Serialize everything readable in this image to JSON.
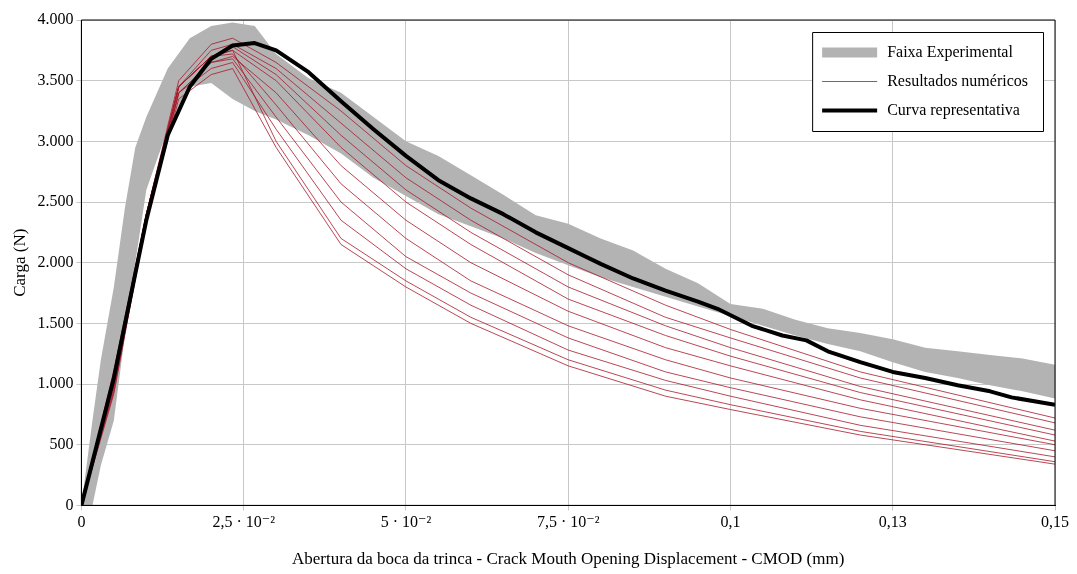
{
  "chart_data": {
    "type": "line",
    "xlabel": "Abertura da boca da trinca - Crack Mouth Opening Displacement - CMOD (mm)",
    "ylabel": "Carga (N)",
    "xlim": [
      0,
      0.15
    ],
    "xticks": [
      0,
      {
        "value": 0.025,
        "label": "2,5 · 10⁻²"
      },
      {
        "value": 0.05,
        "label": "5 · 10⁻²"
      },
      {
        "value": 0.075,
        "label": "7,5 · 10⁻²"
      },
      {
        "value": 0.1,
        "label": "0,1"
      },
      {
        "value": 0.125,
        "label": "0,13"
      },
      {
        "value": 0.15,
        "label": "0,15"
      }
    ],
    "ylim": [
      0,
      4000
    ],
    "yticks": [
      0,
      500,
      {
        "value": 1000,
        "label": "1.000"
      },
      {
        "value": 1500,
        "label": "1.500"
      },
      {
        "value": 2000,
        "label": "2.000"
      },
      {
        "value": 2500,
        "label": "2.500"
      },
      {
        "value": 3000,
        "label": "3.000"
      },
      {
        "value": 3500,
        "label": "3.500"
      },
      {
        "value": 4000,
        "label": "4.000"
      }
    ],
    "grid": true,
    "legend": "top right",
    "marker": "none",
    "line_style": "solid",
    "x": [
      0,
      0.005,
      0.01,
      0.015,
      0.02,
      0.0233,
      0.03,
      0.04,
      0.05,
      0.06,
      0.075,
      0.09,
      0.1,
      0.12,
      0.15
    ],
    "series": [
      {
        "name": "Faixa Experimental",
        "type": "area",
        "color": "#b3b3b3",
        "x": [
          0,
          0.0017,
          0.003,
          0.005,
          0.0067,
          0.0083,
          0.01,
          0.0133,
          0.0167,
          0.02,
          0.0233,
          0.0267,
          0.03,
          0.035,
          0.04,
          0.045,
          0.05,
          0.055,
          0.06,
          0.065,
          0.07,
          0.075,
          0.08,
          0.085,
          0.09,
          0.095,
          0.1,
          0.105,
          0.11,
          0.115,
          0.12,
          0.125,
          0.13,
          0.135,
          0.14,
          0.145,
          0.15
        ],
        "values": [
          null,
          null,
          null,
          null,
          null,
          null,
          null,
          null,
          null,
          null,
          null,
          null,
          null,
          null,
          null,
          null,
          null,
          null,
          null,
          null,
          null,
          null,
          null,
          null,
          null,
          null,
          null,
          null,
          null,
          null,
          null,
          null,
          null,
          null,
          null,
          null,
          null
        ],
        "upper": [
          0,
          700,
          1200,
          1800,
          2450,
          2950,
          3200,
          3600,
          3850,
          3950,
          3980,
          3950,
          3720,
          3520,
          3400,
          3200,
          3000,
          2880,
          2720,
          2560,
          2390,
          2320,
          2200,
          2100,
          1950,
          1830,
          1660,
          1620,
          1530,
          1460,
          1420,
          1370,
          1300,
          1270,
          1240,
          1210,
          1160
        ],
        "lower": [
          0,
          0,
          330,
          700,
          1400,
          2000,
          2600,
          3100,
          3450,
          3480,
          3350,
          3250,
          3180,
          3050,
          2900,
          2700,
          2550,
          2400,
          2300,
          2200,
          2080,
          1980,
          1880,
          1800,
          1720,
          1640,
          1560,
          1480,
          1400,
          1330,
          1270,
          1180,
          1100,
          1050,
          990,
          940,
          880
        ]
      },
      {
        "name": "Resultados numéricos",
        "color": "#a8182a",
        "values": [
          0,
          1050,
          2400,
          3500,
          3800,
          3850,
          3650,
          3250,
          2800,
          2450,
          2000,
          1650,
          1450,
          1100,
          720
        ]
      },
      {
        "color": "#a8182a",
        "values": [
          0,
          1000,
          2400,
          3450,
          3750,
          3800,
          3600,
          3150,
          2700,
          2350,
          1900,
          1550,
          1380,
          1050,
          680
        ]
      },
      {
        "color": "#a8182a",
        "values": [
          0,
          980,
          2350,
          3450,
          3700,
          3780,
          3550,
          3050,
          2600,
          2250,
          1800,
          1480,
          1300,
          980,
          620
        ]
      },
      {
        "color": "#a8182a",
        "values": [
          0,
          1070,
          2400,
          3450,
          3700,
          3750,
          3500,
          2950,
          2500,
          2150,
          1700,
          1400,
          1230,
          930,
          580
        ]
      },
      {
        "color": "#a8182a",
        "values": [
          0,
          960,
          2350,
          3400,
          3650,
          3700,
          3400,
          2800,
          2350,
          2000,
          1600,
          1300,
          1150,
          870,
          530
        ]
      },
      {
        "color": "#a8182a",
        "values": [
          0,
          1090,
          2400,
          3450,
          3700,
          3720,
          3300,
          2650,
          2200,
          1850,
          1480,
          1200,
          1050,
          800,
          500
        ]
      },
      {
        "color": "#a8182a",
        "values": [
          0,
          1020,
          2350,
          3400,
          3650,
          3680,
          3200,
          2500,
          2050,
          1750,
          1380,
          1100,
          970,
          730,
          450
        ]
      },
      {
        "color": "#a8182a",
        "values": [
          0,
          940,
          2350,
          3400,
          3600,
          3650,
          3100,
          2350,
          1950,
          1650,
          1280,
          1030,
          900,
          660,
          400
        ]
      },
      {
        "color": "#a8182a",
        "values": [
          0,
          1110,
          2400,
          3450,
          3700,
          3750,
          3000,
          2200,
          1850,
          1550,
          1200,
          950,
          830,
          610,
          360
        ]
      },
      {
        "color": "#a8182a",
        "values": [
          0,
          920,
          2350,
          3350,
          3550,
          3600,
          2950,
          2150,
          1800,
          1500,
          1150,
          900,
          790,
          580,
          340
        ]
      },
      {
        "name": "Curva representativa",
        "color": "#000000",
        "x": [
          0,
          0.005,
          0.01,
          0.0133,
          0.0167,
          0.02,
          0.0233,
          0.0267,
          0.03,
          0.035,
          0.04,
          0.045,
          0.05,
          0.055,
          0.06,
          0.065,
          0.07,
          0.075,
          0.08,
          0.085,
          0.09,
          0.095,
          0.098,
          0.1033,
          0.108,
          0.1117,
          0.115,
          0.12,
          0.125,
          0.13,
          0.135,
          0.14,
          0.1433,
          0.15
        ],
        "values": [
          0,
          1050,
          2350,
          3050,
          3450,
          3680,
          3790,
          3810,
          3750,
          3570,
          3330,
          3100,
          2880,
          2680,
          2530,
          2400,
          2250,
          2120,
          1990,
          1870,
          1770,
          1680,
          1620,
          1480,
          1400,
          1360,
          1270,
          1180,
          1100,
          1050,
          990,
          940,
          890,
          830
        ]
      }
    ]
  }
}
